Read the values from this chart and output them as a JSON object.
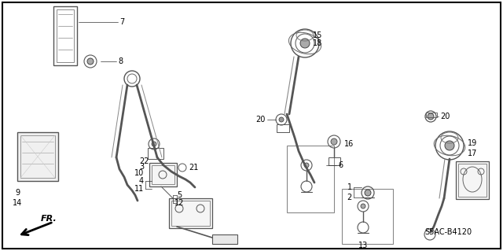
{
  "background_color": "#ffffff",
  "border_color": "#000000",
  "diagram_code": "S5AC-B4120",
  "fr_label": "FR.",
  "fig_width": 6.4,
  "fig_height": 3.19,
  "dpi": 100,
  "font_size_label": 7,
  "font_size_code": 7,
  "font_size_fr": 8
}
